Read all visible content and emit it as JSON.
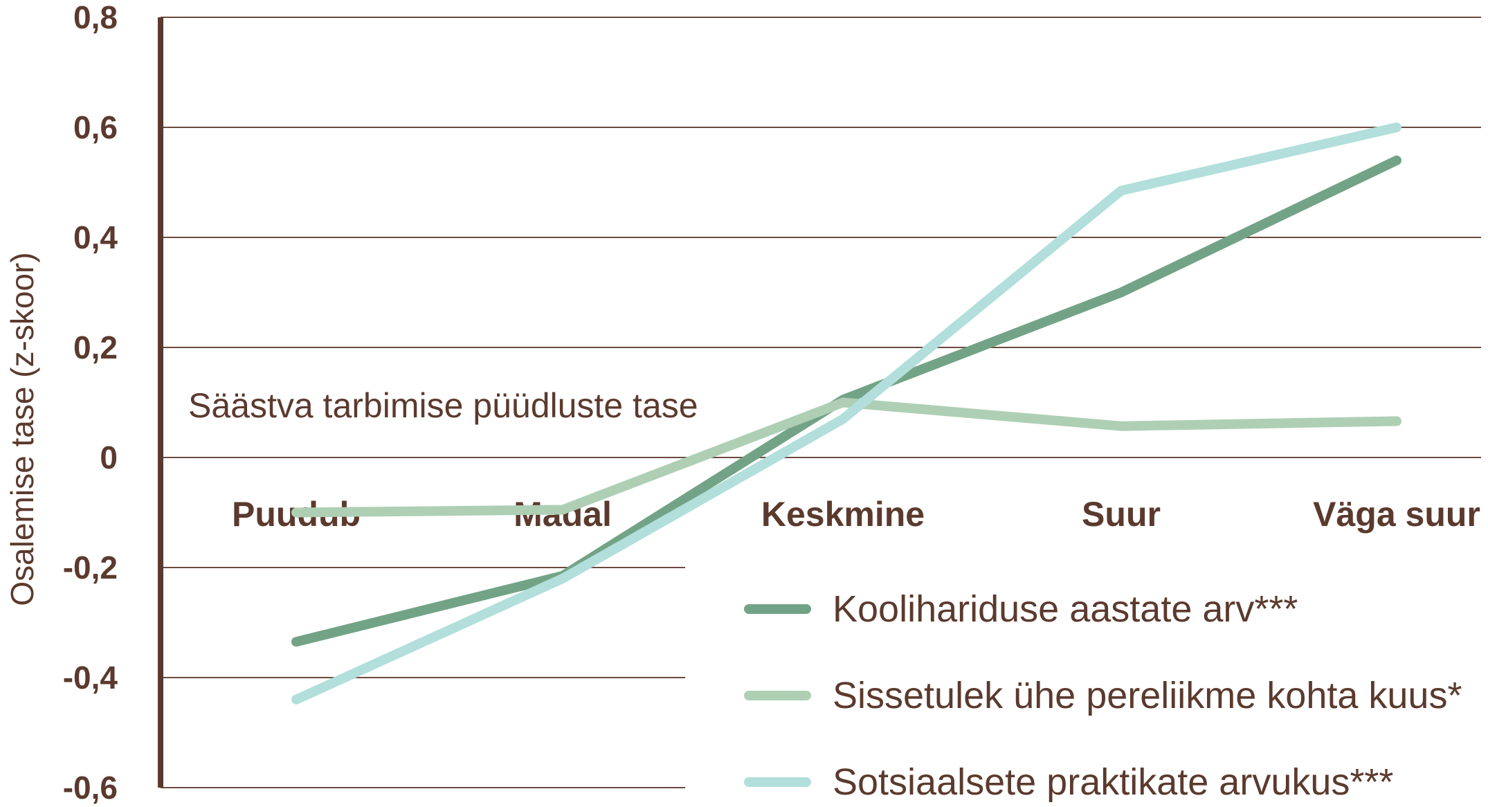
{
  "chart_data": {
    "type": "line",
    "title": "",
    "xlabel": "Säästva tarbimise püüdluste tase",
    "ylabel": "Osalemise tase (z-skoor)",
    "ylim": [
      -0.6,
      0.8
    ],
    "yticks": [
      {
        "value": 0.8,
        "label": "0,8"
      },
      {
        "value": 0.6,
        "label": "0,6"
      },
      {
        "value": 0.4,
        "label": "0,4"
      },
      {
        "value": 0.2,
        "label": "0,2"
      },
      {
        "value": 0,
        "label": "0"
      },
      {
        "value": -0.2,
        "label": "-0,2"
      },
      {
        "value": -0.4,
        "label": "-0,4"
      },
      {
        "value": -0.6,
        "label": "-0,6"
      }
    ],
    "categories": [
      "Puudub",
      "Madal",
      "Keskmine",
      "Suur",
      "Väga suur"
    ],
    "grid": true,
    "legend_position": "bottom-right",
    "series": [
      {
        "name": "Koolihariduse aastate arv***",
        "color": "#73a386",
        "values": [
          -0.335,
          -0.215,
          0.105,
          0.3,
          0.54
        ]
      },
      {
        "name": "Sissetulek ühe pereliikme kohta kuus*",
        "color": "#aecfb4",
        "values": [
          -0.1,
          -0.095,
          0.1,
          0.057,
          0.066
        ]
      },
      {
        "name": "Sotsiaalsete praktikate arvukus***",
        "color": "#b2dfdb",
        "values": [
          -0.44,
          -0.22,
          0.07,
          0.485,
          0.6
        ]
      }
    ]
  }
}
